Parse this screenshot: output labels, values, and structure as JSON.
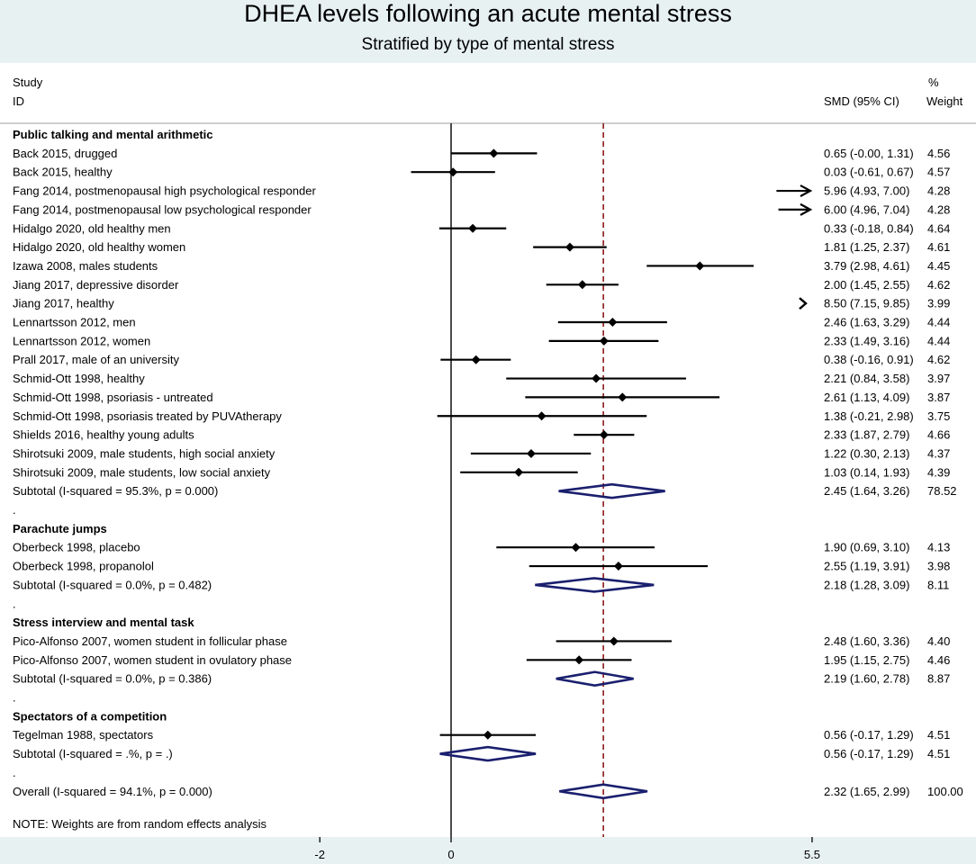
{
  "title": "DHEA levels following an acute mental stress",
  "subtitle": "Stratified by type of mental stress",
  "columns": {
    "study_line1": "Study",
    "study_line2": "ID",
    "smd": "SMD (95% CI)",
    "weight_line1": "%",
    "weight_line2": "Weight"
  },
  "note": "NOTE: Weights are from random effects analysis",
  "colors": {
    "background": "#ffffff",
    "band": "#e7f1f2",
    "diamond": "#1a1f6e",
    "overall_line": "#8b1a1a",
    "marker": "#000000"
  },
  "chart_data": {
    "type": "forest",
    "title": "DHEA levels following an acute mental stress",
    "subtitle": "Stratified by type of mental stress",
    "xaxis": {
      "ticks": [
        -2,
        0,
        5.5
      ],
      "tick_labels": [
        "-2",
        "0",
        "5.5"
      ],
      "range": [
        -6.4,
        7.3
      ],
      "null_line": 0
    },
    "overall_estimate": 2.32,
    "rows": [
      {
        "kind": "group",
        "label": "Public talking and mental arithmetic"
      },
      {
        "kind": "study",
        "label": "Back 2015, drugged",
        "est": 0.65,
        "lo": -0.0,
        "hi": 1.31,
        "ci_text": "0.65 (-0.00, 1.31)",
        "weight": "4.56"
      },
      {
        "kind": "study",
        "label": "Back 2015, healthy",
        "est": 0.03,
        "lo": -0.61,
        "hi": 0.67,
        "ci_text": "0.03 (-0.61, 0.67)",
        "weight": "4.57"
      },
      {
        "kind": "study",
        "label": "Fang 2014, postmenopausal high psychological responder",
        "est": 5.96,
        "lo": 4.93,
        "hi": 7.0,
        "ci_text": "5.96 (4.93, 7.00)",
        "weight": "4.28",
        "clipped": "arrow"
      },
      {
        "kind": "study",
        "label": "Fang 2014, postmenopausal low psychological responder",
        "est": 6.0,
        "lo": 4.96,
        "hi": 7.04,
        "ci_text": "6.00 (4.96, 7.04)",
        "weight": "4.28",
        "clipped": "arrow"
      },
      {
        "kind": "study",
        "label": "Hidalgo 2020, old healthy men",
        "est": 0.33,
        "lo": -0.18,
        "hi": 0.84,
        "ci_text": "0.33 (-0.18, 0.84)",
        "weight": "4.64"
      },
      {
        "kind": "study",
        "label": "Hidalgo 2020, old healthy women",
        "est": 1.81,
        "lo": 1.25,
        "hi": 2.37,
        "ci_text": "1.81 (1.25, 2.37)",
        "weight": "4.61"
      },
      {
        "kind": "study",
        "label": "Izawa 2008, males students",
        "est": 3.79,
        "lo": 2.98,
        "hi": 4.61,
        "ci_text": "3.79 (2.98, 4.61)",
        "weight": "4.45"
      },
      {
        "kind": "study",
        "label": "Jiang 2017, depressive disorder",
        "est": 2.0,
        "lo": 1.45,
        "hi": 2.55,
        "ci_text": "2.00 (1.45, 2.55)",
        "weight": "4.62"
      },
      {
        "kind": "study",
        "label": "Jiang 2017, healthy",
        "est": 8.5,
        "lo": 7.15,
        "hi": 9.85,
        "ci_text": "8.50 (7.15, 9.85)",
        "weight": "3.99",
        "clipped": "chevron"
      },
      {
        "kind": "study",
        "label": "Lennartsson 2012, men",
        "est": 2.46,
        "lo": 1.63,
        "hi": 3.29,
        "ci_text": "2.46 (1.63, 3.29)",
        "weight": "4.44"
      },
      {
        "kind": "study",
        "label": "Lennartsson 2012, women",
        "est": 2.33,
        "lo": 1.49,
        "hi": 3.16,
        "ci_text": "2.33 (1.49, 3.16)",
        "weight": "4.44"
      },
      {
        "kind": "study",
        "label": "Prall 2017, male of an university",
        "est": 0.38,
        "lo": -0.16,
        "hi": 0.91,
        "ci_text": "0.38 (-0.16, 0.91)",
        "weight": "4.62"
      },
      {
        "kind": "study",
        "label": "Schmid-Ott 1998, healthy",
        "est": 2.21,
        "lo": 0.84,
        "hi": 3.58,
        "ci_text": "2.21 (0.84, 3.58)",
        "weight": "3.97"
      },
      {
        "kind": "study",
        "label": "Schmid-Ott 1998, psoriasis - untreated",
        "est": 2.61,
        "lo": 1.13,
        "hi": 4.09,
        "ci_text": "2.61 (1.13, 4.09)",
        "weight": "3.87"
      },
      {
        "kind": "study",
        "label": "Schmid-Ott 1998, psoriasis treated by PUVAtherapy",
        "est": 1.38,
        "lo": -0.21,
        "hi": 2.98,
        "ci_text": "1.38 (-0.21, 2.98)",
        "weight": "3.75"
      },
      {
        "kind": "study",
        "label": "Shields 2016, healthy young adults",
        "est": 2.33,
        "lo": 1.87,
        "hi": 2.79,
        "ci_text": "2.33 (1.87, 2.79)",
        "weight": "4.66"
      },
      {
        "kind": "study",
        "label": "Shirotsuki 2009, male students, high social anxiety",
        "est": 1.22,
        "lo": 0.3,
        "hi": 2.13,
        "ci_text": "1.22 (0.30, 2.13)",
        "weight": "4.37"
      },
      {
        "kind": "study",
        "label": "Shirotsuki 2009, male students, low social anxiety",
        "est": 1.03,
        "lo": 0.14,
        "hi": 1.93,
        "ci_text": "1.03 (0.14, 1.93)",
        "weight": "4.39"
      },
      {
        "kind": "subtotal",
        "label": "Subtotal  (I-squared = 95.3%, p = 0.000)",
        "est": 2.45,
        "lo": 1.64,
        "hi": 3.26,
        "ci_text": "2.45 (1.64, 3.26)",
        "weight": "78.52"
      },
      {
        "kind": "spacer",
        "label": "."
      },
      {
        "kind": "group",
        "label": "Parachute jumps"
      },
      {
        "kind": "study",
        "label": "Oberbeck 1998, placebo",
        "est": 1.9,
        "lo": 0.69,
        "hi": 3.1,
        "ci_text": "1.90 (0.69, 3.10)",
        "weight": "4.13"
      },
      {
        "kind": "study",
        "label": "Oberbeck 1998, propanolol",
        "est": 2.55,
        "lo": 1.19,
        "hi": 3.91,
        "ci_text": "2.55 (1.19, 3.91)",
        "weight": "3.98"
      },
      {
        "kind": "subtotal",
        "label": "Subtotal  (I-squared = 0.0%, p = 0.482)",
        "est": 2.18,
        "lo": 1.28,
        "hi": 3.09,
        "ci_text": "2.18 (1.28, 3.09)",
        "weight": "8.11"
      },
      {
        "kind": "spacer",
        "label": "."
      },
      {
        "kind": "group",
        "label": "Stress interview and mental task"
      },
      {
        "kind": "study",
        "label": "Pico-Alfonso 2007, women student in follicular phase",
        "est": 2.48,
        "lo": 1.6,
        "hi": 3.36,
        "ci_text": "2.48 (1.60, 3.36)",
        "weight": "4.40"
      },
      {
        "kind": "study",
        "label": "Pico-Alfonso 2007, women student in ovulatory phase",
        "est": 1.95,
        "lo": 1.15,
        "hi": 2.75,
        "ci_text": "1.95 (1.15, 2.75)",
        "weight": "4.46"
      },
      {
        "kind": "subtotal",
        "label": "Subtotal  (I-squared = 0.0%, p = 0.386)",
        "est": 2.19,
        "lo": 1.6,
        "hi": 2.78,
        "ci_text": "2.19 (1.60, 2.78)",
        "weight": "8.87"
      },
      {
        "kind": "spacer",
        "label": "."
      },
      {
        "kind": "group",
        "label": "Spectators of a competition"
      },
      {
        "kind": "study",
        "label": "Tegelman 1988, spectators",
        "est": 0.56,
        "lo": -0.17,
        "hi": 1.29,
        "ci_text": "0.56 (-0.17, 1.29)",
        "weight": "4.51"
      },
      {
        "kind": "subtotal",
        "label": "Subtotal  (I-squared = .%, p = .)",
        "est": 0.56,
        "lo": -0.17,
        "hi": 1.29,
        "ci_text": "0.56 (-0.17, 1.29)",
        "weight": "4.51"
      },
      {
        "kind": "spacer",
        "label": "."
      },
      {
        "kind": "overall",
        "label": "Overall  (I-squared = 94.1%, p = 0.000)",
        "est": 2.32,
        "lo": 1.65,
        "hi": 2.99,
        "ci_text": "2.32 (1.65, 2.99)",
        "weight": "100.00"
      }
    ]
  }
}
